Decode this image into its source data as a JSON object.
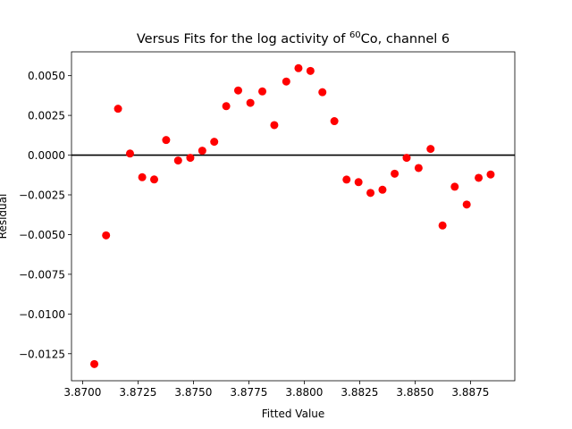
{
  "chart_data": {
    "type": "scatter",
    "title": {
      "main": "Versus Fits for the log activity of ",
      "superscript": "60",
      "suffix": "Co, channel 6"
    },
    "xlabel": "Fitted Value",
    "ylabel": "Residual",
    "xlim": [
      3.8695,
      3.8895
    ],
    "ylim": [
      -0.0142,
      0.0065
    ],
    "xticks": [
      3.87,
      3.8725,
      3.875,
      3.8775,
      3.88,
      3.8825,
      3.885,
      3.8875
    ],
    "xtick_labels": [
      "3.8700",
      "3.8725",
      "3.8750",
      "3.8775",
      "3.8800",
      "3.8825",
      "3.8850",
      "3.8875"
    ],
    "yticks": [
      0.005,
      0.0025,
      0.0,
      -0.0025,
      -0.005,
      -0.0075,
      -0.01,
      -0.0125
    ],
    "ytick_labels": [
      "0.0050",
      "0.0025",
      "0.0000",
      "−0.0025",
      "−0.0050",
      "−0.0075",
      "−0.0100",
      "−0.0125"
    ],
    "reference_line_y": 0.0,
    "grid": false,
    "marker_color": "#ff0000",
    "reference_line_color": "#000000",
    "points": [
      {
        "x": 3.87053,
        "y": -0.01315
      },
      {
        "x": 3.87106,
        "y": -0.00505
      },
      {
        "x": 3.8716,
        "y": 0.00292
      },
      {
        "x": 3.87214,
        "y": 0.0001
      },
      {
        "x": 3.87269,
        "y": -0.00139
      },
      {
        "x": 3.87323,
        "y": -0.00153
      },
      {
        "x": 3.87377,
        "y": 0.00095
      },
      {
        "x": 3.87431,
        "y": -0.00034
      },
      {
        "x": 3.87486,
        "y": -0.00017
      },
      {
        "x": 3.8754,
        "y": 0.00028
      },
      {
        "x": 3.87594,
        "y": 0.00084
      },
      {
        "x": 3.87648,
        "y": 0.00308
      },
      {
        "x": 3.87702,
        "y": 0.00407
      },
      {
        "x": 3.87757,
        "y": 0.00329
      },
      {
        "x": 3.87811,
        "y": 0.00401
      },
      {
        "x": 3.87865,
        "y": 0.00189
      },
      {
        "x": 3.87919,
        "y": 0.00463
      },
      {
        "x": 3.87974,
        "y": 0.00547
      },
      {
        "x": 3.88028,
        "y": 0.0053
      },
      {
        "x": 3.88082,
        "y": 0.00396
      },
      {
        "x": 3.88136,
        "y": 0.00214
      },
      {
        "x": 3.88191,
        "y": -0.00154
      },
      {
        "x": 3.88245,
        "y": -0.0017
      },
      {
        "x": 3.88299,
        "y": -0.00238
      },
      {
        "x": 3.88353,
        "y": -0.00218
      },
      {
        "x": 3.88408,
        "y": -0.00117
      },
      {
        "x": 3.88462,
        "y": -0.00017
      },
      {
        "x": 3.88516,
        "y": -0.00081
      },
      {
        "x": 3.8857,
        "y": 0.00039
      },
      {
        "x": 3.88624,
        "y": -0.00443
      },
      {
        "x": 3.88679,
        "y": -0.00199
      },
      {
        "x": 3.88733,
        "y": -0.00311
      },
      {
        "x": 3.88787,
        "y": -0.00143
      },
      {
        "x": 3.88841,
        "y": -0.00122
      }
    ]
  }
}
